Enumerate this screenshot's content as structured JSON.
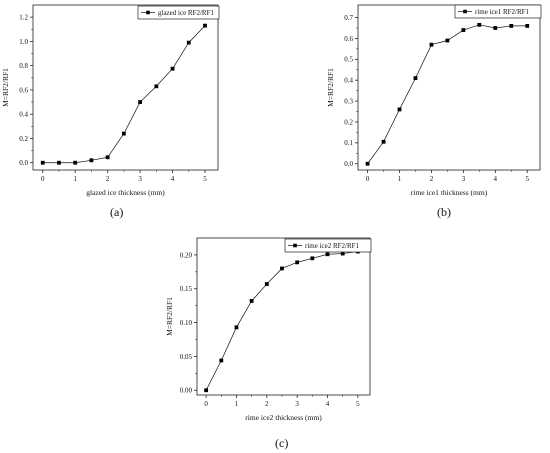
{
  "chart_data": [
    {
      "type": "line",
      "panel": "(a)",
      "x": [
        0,
        0.5,
        1,
        1.5,
        2,
        2.5,
        3,
        3.5,
        4,
        4.5,
        5
      ],
      "series": [
        {
          "name": "glazed ice RF2/RF1",
          "values": [
            0.0,
            0.0,
            0.0,
            0.02,
            0.045,
            0.24,
            0.5,
            0.63,
            0.775,
            0.99,
            1.13
          ]
        }
      ],
      "xlabel": "glazed ice thickness (mm)",
      "ylabel": "M=RF2/RF1",
      "xticks": [
        "0",
        "1",
        "2",
        "3",
        "4",
        "5"
      ],
      "yticks": [
        "0.0",
        "0.2",
        "0.4",
        "0.6",
        "0.8",
        "1.0",
        "1.2"
      ],
      "xlim": [
        -0.3,
        5.4
      ],
      "ylim": [
        -0.06,
        1.3
      ],
      "legend_position": "top-right",
      "grid": false,
      "marker": "square"
    },
    {
      "type": "line",
      "panel": "(b)",
      "x": [
        0,
        0.5,
        1,
        1.5,
        2,
        2.5,
        3,
        3.5,
        4,
        4.5,
        5
      ],
      "series": [
        {
          "name": "rime ice1 RF2/RF1",
          "values": [
            0.0,
            0.105,
            0.26,
            0.41,
            0.57,
            0.59,
            0.64,
            0.665,
            0.65,
            0.66,
            0.66
          ]
        }
      ],
      "xlabel": "rime ice1 thickness (mm)",
      "ylabel": "M=RF2/RF1",
      "xticks": [
        "0",
        "1",
        "2",
        "3",
        "4",
        "5"
      ],
      "yticks": [
        "0.0",
        "0.1",
        "0.2",
        "0.3",
        "0.4",
        "0.5",
        "0.6",
        "0.7"
      ],
      "xlim": [
        -0.3,
        5.4
      ],
      "ylim": [
        -0.03,
        0.76
      ],
      "legend_position": "top-right",
      "grid": false,
      "marker": "square"
    },
    {
      "type": "line",
      "panel": "(c)",
      "x": [
        0,
        0.5,
        1,
        1.5,
        2,
        2.5,
        3,
        3.5,
        4,
        4.5,
        5
      ],
      "series": [
        {
          "name": "rime ice2 RF2/RF1",
          "values": [
            0.0,
            0.044,
            0.093,
            0.132,
            0.157,
            0.18,
            0.189,
            0.195,
            0.201,
            0.202,
            0.205
          ]
        }
      ],
      "xlabel": "rime ice2 thickness (mm)",
      "ylabel": "M=RF2/RF1",
      "xticks": [
        "0",
        "1",
        "2",
        "3",
        "4",
        "5"
      ],
      "yticks": [
        "0.00",
        "0.05",
        "0.10",
        "0.15",
        "0.20"
      ],
      "xlim": [
        -0.3,
        5.4
      ],
      "ylim": [
        -0.007,
        0.225
      ],
      "legend_position": "top-right",
      "grid": false,
      "marker": "square"
    }
  ],
  "captions": [
    "(a)",
    "(b)",
    "(c)"
  ]
}
